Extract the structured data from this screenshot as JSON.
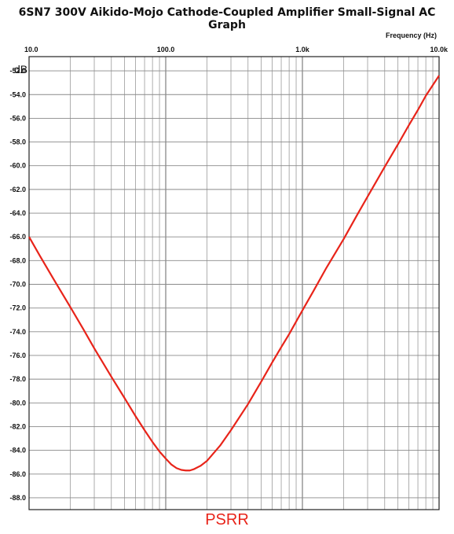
{
  "chart_data": {
    "type": "line",
    "title": "6SN7 300V Aikido-Mojo Cathode-Coupled Amplifier Small-Signal AC Graph",
    "xlabel": "Frequency  (Hz)",
    "ylabel": "dB",
    "xscale": "log",
    "xlim": [
      10,
      10000
    ],
    "ylim": [
      -89,
      -50.8
    ],
    "x_ticks": [
      10,
      100,
      1000,
      10000
    ],
    "x_tick_labels": [
      "10.0",
      "100.0",
      "1.0k",
      "10.0k"
    ],
    "y_ticks": [
      -52,
      -54,
      -56,
      -58,
      -60,
      -62,
      -64,
      -66,
      -68,
      -70,
      -72,
      -74,
      -76,
      -78,
      -80,
      -82,
      -84,
      -86,
      -88
    ],
    "y_tick_labels": [
      "-52.0",
      "-54.0",
      "-56.0",
      "-58.0",
      "-60.0",
      "-62.0",
      "-64.0",
      "-66.0",
      "-68.0",
      "-70.0",
      "-72.0",
      "-74.0",
      "-76.0",
      "-78.0",
      "-80.0",
      "-82.0",
      "-84.0",
      "-86.0",
      "-88.0"
    ],
    "grid": true,
    "series": [
      {
        "name": "PSRR",
        "color": "#e8241a",
        "x": [
          10,
          12,
          15,
          20,
          25,
          30,
          40,
          50,
          60,
          70,
          80,
          90,
          100,
          110,
          120,
          130,
          140,
          150,
          160,
          180,
          200,
          250,
          300,
          400,
          500,
          600,
          700,
          800,
          1000,
          1200,
          1500,
          2000,
          2500,
          3000,
          4000,
          5000,
          6000,
          7000,
          8000,
          10000
        ],
        "y": [
          -66,
          -67.6,
          -69.5,
          -71.9,
          -73.8,
          -75.4,
          -77.8,
          -79.6,
          -81.1,
          -82.3,
          -83.3,
          -84.1,
          -84.7,
          -85.2,
          -85.5,
          -85.65,
          -85.7,
          -85.7,
          -85.6,
          -85.3,
          -84.9,
          -83.6,
          -82.3,
          -80.1,
          -78.2,
          -76.6,
          -75.3,
          -74.2,
          -72.2,
          -70.6,
          -68.6,
          -66.2,
          -64.2,
          -62.6,
          -60.1,
          -58.2,
          -56.6,
          -55.3,
          -54.1,
          -52.4
        ]
      }
    ]
  }
}
